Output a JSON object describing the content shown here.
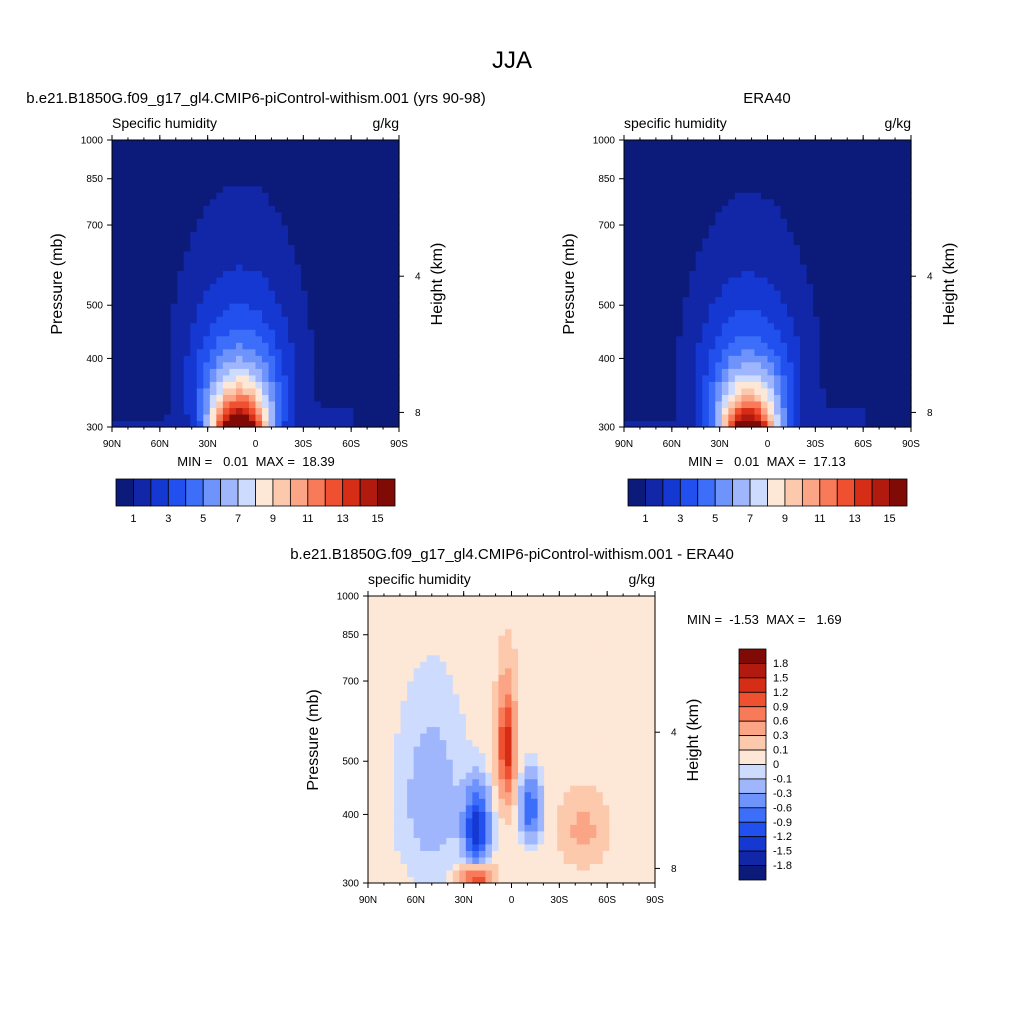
{
  "page_title": "JJA",
  "colors": {
    "main_scale": [
      "#0c1b7a",
      "#1226a8",
      "#1638d2",
      "#2150ee",
      "#3d6ef9",
      "#6e93fb",
      "#9fb6fd",
      "#cddbfe",
      "#fde7d6",
      "#fcc9ad",
      "#fca486",
      "#f97a58",
      "#ee5030",
      "#d62d17",
      "#b11a0f",
      "#800b06"
    ],
    "diff_scale": [
      "#0c1b7a",
      "#1226a8",
      "#1638d2",
      "#2150ee",
      "#3d6ef9",
      "#6e93fb",
      "#9fb6fd",
      "#cddbfe",
      "#fde7d6",
      "#fcc9ad",
      "#fca486",
      "#f97a58",
      "#ee5030",
      "#d62d17",
      "#b11a0f",
      "#800b06"
    ]
  },
  "chart_data": [
    {
      "type": "heatmap",
      "title": "b.e21.B1850G.f09_g17_gl4.CMIP6-piControl-withism.001 (yrs 90-98)",
      "left_label": "Specific humidity",
      "right_label": "g/kg",
      "ylabel": "Pressure (mb)",
      "ylabel_right": "Height (km)",
      "x_ticks": [
        "90N",
        "60N",
        "30N",
        "0",
        "30S",
        "60S",
        "90S"
      ],
      "y_ticks": [
        "300",
        "400",
        "500",
        "700",
        "850",
        "1000"
      ],
      "y_ticks_right": [
        "8",
        "4"
      ],
      "ylim": [
        1000,
        300
      ],
      "x_range": [
        90,
        -90
      ],
      "stats": "MIN =   0.01  MAX =  18.39",
      "peak_lat": 10,
      "peak_value": 18.39,
      "levels": [
        1,
        2,
        3,
        4,
        5,
        6,
        7,
        8,
        9,
        10,
        11,
        12,
        13,
        14,
        15
      ],
      "colorbar_labels": [
        "1",
        "3",
        "5",
        "7",
        "9",
        "11",
        "13",
        "15"
      ]
    },
    {
      "type": "heatmap",
      "title": "ERA40",
      "left_label": "specific humidity",
      "right_label": "g/kg",
      "ylabel": "Pressure (mb)",
      "ylabel_right": "Height (km)",
      "x_ticks": [
        "90N",
        "60N",
        "30N",
        "0",
        "30S",
        "60S",
        "90S"
      ],
      "y_ticks": [
        "300",
        "400",
        "500",
        "700",
        "850",
        "1000"
      ],
      "y_ticks_right": [
        "8",
        "4"
      ],
      "ylim": [
        1000,
        300
      ],
      "x_range": [
        90,
        -90
      ],
      "stats": "MIN =   0.01  MAX =  17.13",
      "peak_lat": 12,
      "peak_value": 17.13,
      "levels": [
        1,
        2,
        3,
        4,
        5,
        6,
        7,
        8,
        9,
        10,
        11,
        12,
        13,
        14,
        15
      ],
      "colorbar_labels": [
        "1",
        "3",
        "5",
        "7",
        "9",
        "11",
        "13",
        "15"
      ]
    },
    {
      "type": "heatmap",
      "title": "b.e21.B1850G.f09_g17_gl4.CMIP6-piControl-withism.001 - ERA40",
      "left_label": "specific humidity",
      "right_label": "g/kg",
      "ylabel": "Pressure (mb)",
      "ylabel_right": "Height (km)",
      "x_ticks": [
        "90N",
        "60N",
        "30N",
        "0",
        "30S",
        "60S",
        "90S"
      ],
      "y_ticks": [
        "300",
        "400",
        "500",
        "700",
        "850",
        "1000"
      ],
      "y_ticks_right": [
        "8",
        "4"
      ],
      "ylim": [
        1000,
        300
      ],
      "x_range": [
        90,
        -90
      ],
      "stats": "MIN =  -1.53  MAX =   1.69",
      "levels": [
        -1.8,
        -1.5,
        -1.2,
        -0.9,
        -0.6,
        -0.3,
        -0.1,
        0,
        0.1,
        0.3,
        0.6,
        0.9,
        1.2,
        1.5,
        1.8
      ],
      "colorbar_labels": [
        "1.8",
        "1.5",
        "1.2",
        "0.9",
        "0.6",
        "0.3",
        "0.1",
        "0",
        "-0.1",
        "-0.3",
        "-0.6",
        "-0.9",
        "-1.2",
        "-1.5",
        "-1.8"
      ]
    }
  ]
}
